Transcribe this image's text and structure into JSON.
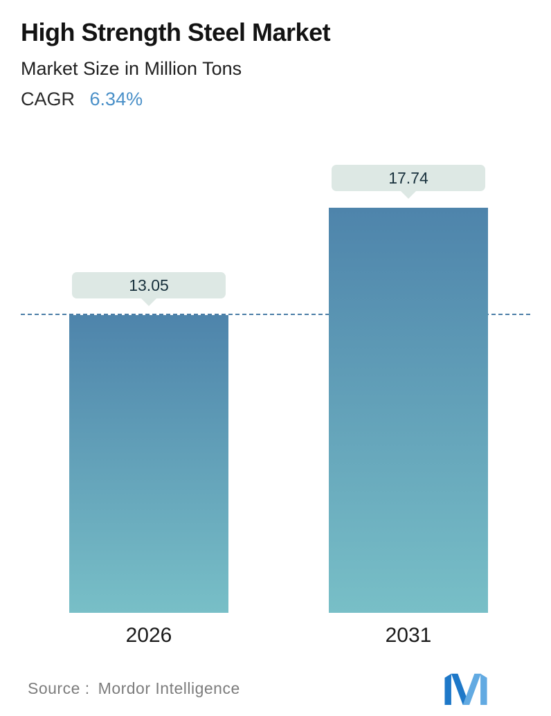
{
  "header": {
    "title": "High Strength Steel Market",
    "subtitle": "Market Size in Million Tons",
    "cagr_label": "CAGR",
    "cagr_value": "6.34%"
  },
  "chart_data": {
    "type": "bar",
    "title": "High Strength Steel Market",
    "subtitle": "Market Size in Million Tons",
    "cagr": "6.34%",
    "categories": [
      "2026",
      "2031"
    ],
    "values": [
      13.05,
      17.74
    ],
    "value_labels": [
      "13.05",
      "17.74"
    ],
    "unit": "Million Tons",
    "xlabel": "",
    "ylabel": "",
    "y_axis_visible": false,
    "grid": false,
    "legend": false,
    "reference_line": {
      "value": 13.05,
      "style": "dashed"
    },
    "bar_gradient_top": "#4e84ab",
    "bar_gradient_bottom": "#78bfc7"
  },
  "footer": {
    "source_label": "Source :",
    "source_value": "Mordor Intelligence"
  },
  "colors": {
    "cagr_value": "#4a90c8",
    "dashed_line": "#4a7da6",
    "callout_bg": "#dde8e4",
    "callout_text": "#17303c",
    "logo_dark": "#1e78c8",
    "logo_light": "#62aae2"
  }
}
